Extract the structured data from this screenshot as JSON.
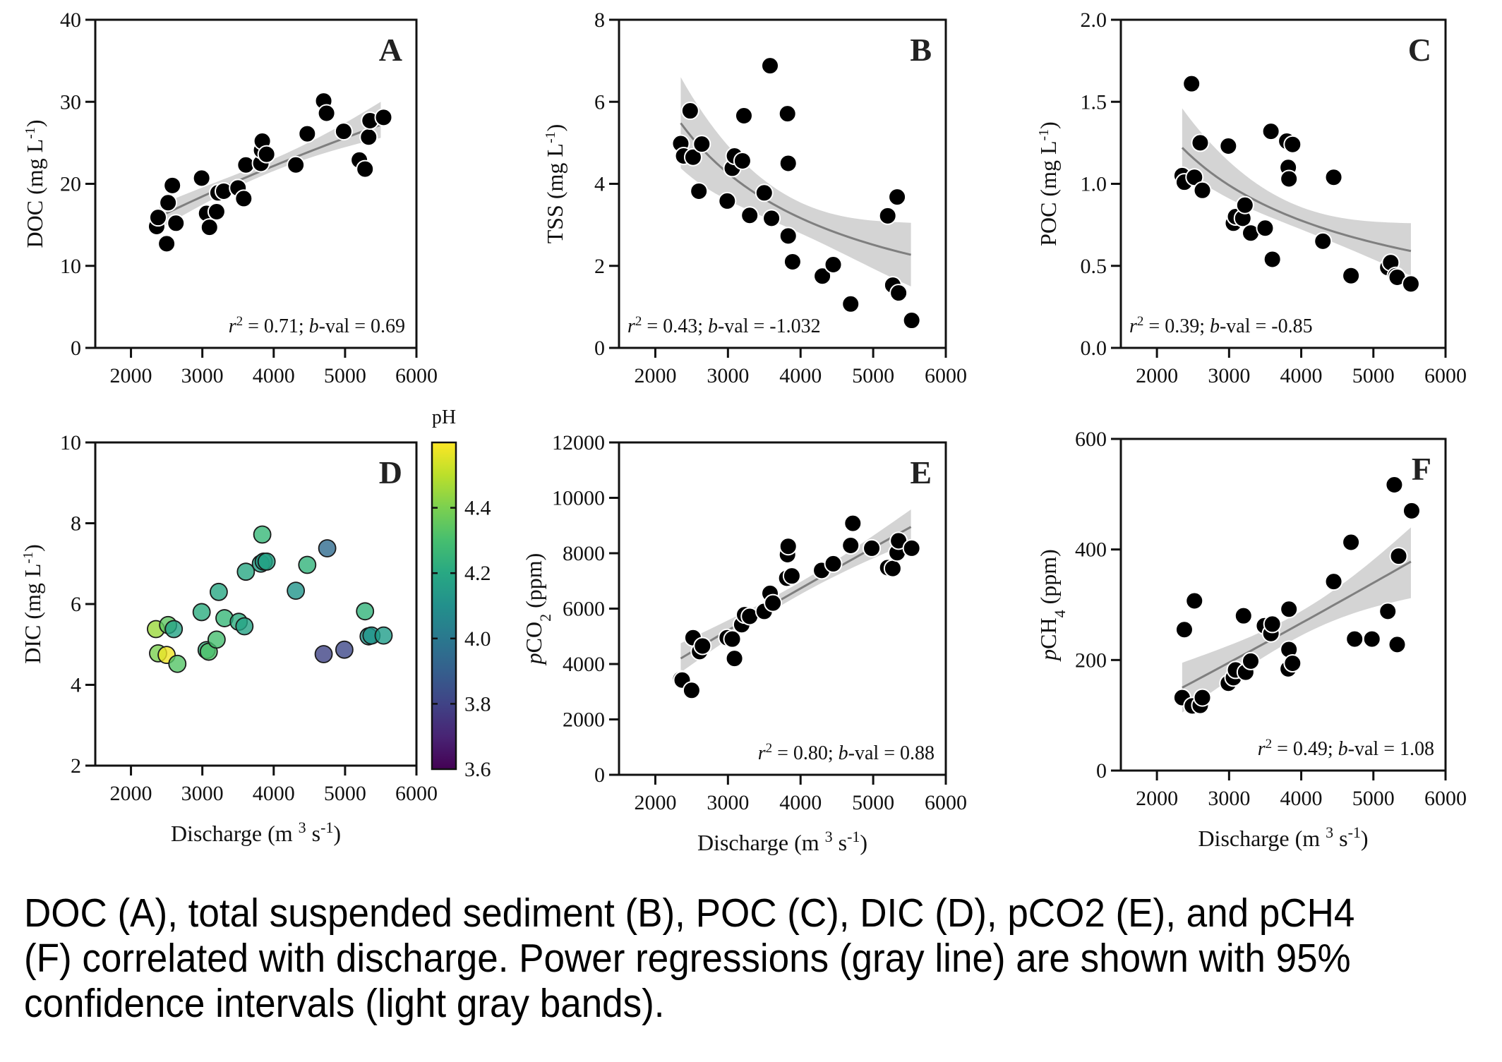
{
  "caption": "DOC (A), total suspended sediment (B), POC (C), DIC (D), pCO2 (E), and pCH4 (F) correlated with discharge. Power regressions (gray line) are shown with 95% confidence intervals (light gray bands).",
  "chart_data": [
    {
      "id": "A",
      "type": "scatter",
      "panel_label": "A",
      "ylabel": "DOC (mg L-1)",
      "ylabel_main": "DOC (mg L",
      "ylabel_sup": "-1",
      "ylabel_end": ")",
      "xlabel": "",
      "xlim": [
        1500,
        6000
      ],
      "ylim": [
        0,
        40
      ],
      "xticks": [
        2000,
        3000,
        4000,
        5000,
        6000
      ],
      "yticks": [
        0,
        10,
        20,
        30,
        40
      ],
      "ytick_labels": [
        "0",
        "10",
        "20",
        "30",
        "40"
      ],
      "stat": {
        "r2_label": "r",
        "r2_sup": "2",
        "r2_value": " = 0.71;  ",
        "b_label": "b",
        "b_value": "-val  = 0.69"
      },
      "stat_position": "bottom-right",
      "regression": {
        "type": "power",
        "x_range": [
          2400,
          5500
        ],
        "y_start": 16.0,
        "y_end": 27.2,
        "ci_start": [
          14.5,
          17.4
        ],
        "ci_end": [
          25.6,
          30.0
        ]
      },
      "points": [
        [
          2360,
          14.8
        ],
        [
          2380,
          15.9
        ],
        [
          2500,
          12.7
        ],
        [
          2520,
          17.7
        ],
        [
          2580,
          19.8
        ],
        [
          2630,
          15.2
        ],
        [
          2990,
          20.7
        ],
        [
          3060,
          16.4
        ],
        [
          3100,
          14.7
        ],
        [
          3200,
          16.6
        ],
        [
          3220,
          18.9
        ],
        [
          3300,
          19.1
        ],
        [
          3500,
          19.5
        ],
        [
          3580,
          18.2
        ],
        [
          3610,
          22.3
        ],
        [
          3820,
          22.5
        ],
        [
          3830,
          24.1
        ],
        [
          3840,
          25.2
        ],
        [
          3900,
          23.6
        ],
        [
          4310,
          22.3
        ],
        [
          4470,
          26.1
        ],
        [
          4700,
          30.1
        ],
        [
          4740,
          28.6
        ],
        [
          4980,
          26.4
        ],
        [
          5200,
          22.9
        ],
        [
          5280,
          21.8
        ],
        [
          5330,
          25.7
        ],
        [
          5350,
          27.7
        ],
        [
          5540,
          28.1
        ]
      ]
    },
    {
      "id": "B",
      "type": "scatter",
      "panel_label": "B",
      "ylabel": "TSS (mg L-1)",
      "ylabel_main": "TSS (mg L",
      "ylabel_sup": "-1",
      "ylabel_end": ")",
      "xlabel": "",
      "xlim": [
        1500,
        6000
      ],
      "ylim": [
        0,
        8
      ],
      "xticks": [
        2000,
        3000,
        4000,
        5000,
        6000
      ],
      "yticks": [
        0,
        2,
        4,
        6,
        8
      ],
      "ytick_labels": [
        "0",
        "2",
        "4",
        "6",
        "8"
      ],
      "stat": {
        "r2_label": "r",
        "r2_sup": "2",
        "r2_value": " = 0.43;  ",
        "b_label": "b",
        "b_value": "-val  = -1.032"
      },
      "stat_position": "bottom-left",
      "regression": {
        "type": "power",
        "x_range": [
          2350,
          5520
        ],
        "exponent": -1.032,
        "y_start": 5.48,
        "ci_start": [
          4.38,
          6.6
        ],
        "ci_end": [
          1.5,
          3.05
        ]
      },
      "points": [
        [
          2350,
          4.98
        ],
        [
          2390,
          4.68
        ],
        [
          2480,
          5.78
        ],
        [
          2520,
          4.65
        ],
        [
          2600,
          3.82
        ],
        [
          2640,
          4.97
        ],
        [
          2990,
          3.58
        ],
        [
          3060,
          4.38
        ],
        [
          3090,
          4.68
        ],
        [
          3200,
          4.56
        ],
        [
          3220,
          5.66
        ],
        [
          3300,
          3.23
        ],
        [
          3500,
          3.78
        ],
        [
          3580,
          6.88
        ],
        [
          3600,
          3.16
        ],
        [
          3820,
          5.71
        ],
        [
          3830,
          4.5
        ],
        [
          3830,
          2.73
        ],
        [
          3890,
          2.1
        ],
        [
          4300,
          1.75
        ],
        [
          4450,
          2.03
        ],
        [
          4690,
          1.07
        ],
        [
          5200,
          3.22
        ],
        [
          5270,
          1.53
        ],
        [
          5330,
          3.68
        ],
        [
          5350,
          1.34
        ],
        [
          5530,
          0.67
        ]
      ]
    },
    {
      "id": "C",
      "type": "scatter",
      "panel_label": "C",
      "ylabel": "POC (mg L-1)",
      "ylabel_main": "POC (mg L",
      "ylabel_sup": "-1",
      "ylabel_end": ")",
      "xlabel": "",
      "xlim": [
        1500,
        6000
      ],
      "ylim": [
        0,
        2.0
      ],
      "xticks": [
        2000,
        3000,
        4000,
        5000,
        6000
      ],
      "yticks": [
        0,
        0.5,
        1.0,
        1.5,
        2.0
      ],
      "ytick_labels": [
        "0.0",
        "0.5",
        "1.0",
        "1.5",
        "2.0"
      ],
      "stat": {
        "r2_label": "r",
        "r2_sup": "2",
        "r2_value": " = 0.39;  ",
        "b_label": "b",
        "b_value": "-val  = -0.85"
      },
      "stat_position": "bottom-left",
      "regression": {
        "type": "power",
        "x_range": [
          2350,
          5520
        ],
        "exponent": -0.85,
        "y_start": 1.22,
        "ci_start": [
          1.1,
          1.46
        ],
        "ci_end": [
          0.44,
          0.76
        ]
      },
      "points": [
        [
          2350,
          1.05
        ],
        [
          2380,
          1.01
        ],
        [
          2480,
          1.61
        ],
        [
          2520,
          1.04
        ],
        [
          2600,
          1.25
        ],
        [
          2630,
          0.96
        ],
        [
          2990,
          1.23
        ],
        [
          3060,
          0.76
        ],
        [
          3090,
          0.8
        ],
        [
          3190,
          0.79
        ],
        [
          3220,
          0.87
        ],
        [
          3300,
          0.7
        ],
        [
          3500,
          0.73
        ],
        [
          3580,
          1.32
        ],
        [
          3600,
          0.54
        ],
        [
          3800,
          1.26
        ],
        [
          3820,
          1.1
        ],
        [
          3830,
          1.03
        ],
        [
          3880,
          1.24
        ],
        [
          4300,
          0.65
        ],
        [
          4450,
          1.04
        ],
        [
          4690,
          0.44
        ],
        [
          5200,
          0.49
        ],
        [
          5240,
          0.52
        ],
        [
          5310,
          0.44
        ],
        [
          5330,
          0.43
        ],
        [
          5520,
          0.39
        ]
      ]
    },
    {
      "id": "D",
      "type": "scatter",
      "panel_label": "D",
      "ylabel": "DIC (mg L-1)",
      "ylabel_main": "DIC (mg L",
      "ylabel_sup": "-1",
      "ylabel_end": ")",
      "xlabel": "Discharge (m3 s-1)",
      "xlabel_main": "Discharge (m ",
      "xlabel_sup1": "3",
      "xlabel_mid": " s",
      "xlabel_sup2": "-1",
      "xlabel_end": ")",
      "xlim": [
        1500,
        6000
      ],
      "ylim": [
        2,
        10
      ],
      "xticks": [
        2000,
        3000,
        4000,
        5000,
        6000
      ],
      "yticks": [
        2,
        4,
        6,
        8,
        10
      ],
      "ytick_labels": [
        "2",
        "4",
        "6",
        "8",
        "10"
      ],
      "colorbar": {
        "title": "pH",
        "range": [
          3.6,
          4.6
        ],
        "ticks": [
          3.6,
          3.8,
          4.0,
          4.2,
          4.4
        ],
        "tick_labels": [
          "3.6",
          "3.8",
          "4.0",
          "4.2",
          "4.4"
        ],
        "colormap": "viridis"
      },
      "points": [
        [
          2350,
          5.38,
          4.45
        ],
        [
          2380,
          4.78,
          4.4
        ],
        [
          2500,
          4.74,
          4.58
        ],
        [
          2520,
          5.48,
          4.35
        ],
        [
          2600,
          5.38,
          4.18
        ],
        [
          2650,
          4.52,
          4.33
        ],
        [
          2990,
          5.8,
          4.22
        ],
        [
          3060,
          4.86,
          4.25
        ],
        [
          3090,
          4.82,
          4.32
        ],
        [
          3200,
          5.12,
          4.3
        ],
        [
          3230,
          6.3,
          4.2
        ],
        [
          3310,
          5.65,
          4.27
        ],
        [
          3510,
          5.56,
          4.22
        ],
        [
          3590,
          5.45,
          4.18
        ],
        [
          3610,
          6.8,
          4.2
        ],
        [
          3820,
          7.0,
          4.17
        ],
        [
          3840,
          7.72,
          4.27
        ],
        [
          3860,
          7.05,
          4.15
        ],
        [
          3900,
          7.05,
          4.18
        ],
        [
          4310,
          6.33,
          4.12
        ],
        [
          4470,
          6.97,
          4.25
        ],
        [
          4700,
          4.76,
          3.8
        ],
        [
          4750,
          7.38,
          3.95
        ],
        [
          4990,
          4.87,
          3.82
        ],
        [
          5280,
          5.82,
          4.25
        ],
        [
          5330,
          5.2,
          4.12
        ],
        [
          5370,
          5.22,
          4.12
        ],
        [
          5540,
          5.22,
          4.15
        ]
      ]
    },
    {
      "id": "E",
      "type": "scatter",
      "panel_label": "E",
      "ylabel": "pCO2 (ppm)",
      "ylabel_italic": "p",
      "ylabel_main": "CO",
      "ylabel_sub": "2",
      "ylabel_end": " (ppm)",
      "xlabel": "Discharge (m3 s-1)",
      "xlabel_main": "Discharge (m ",
      "xlabel_sup1": "3",
      "xlabel_mid": " s",
      "xlabel_sup2": "-1",
      "xlabel_end": ")",
      "xlim": [
        1500,
        6000
      ],
      "ylim": [
        0,
        12000
      ],
      "xticks": [
        2000,
        3000,
        4000,
        5000,
        6000
      ],
      "yticks": [
        0,
        2000,
        4000,
        6000,
        8000,
        10000,
        12000
      ],
      "ytick_labels": [
        "0",
        "2000",
        "4000",
        "6000",
        "8000",
        "10000",
        "12000"
      ],
      "stat": {
        "r2_label": "r",
        "r2_sup": "2",
        "r2_value": " = 0.80;  ",
        "b_label": "b",
        "b_value": "-val  = 0.88"
      },
      "stat_position": "bottom-right",
      "regression": {
        "type": "power",
        "x_range": [
          2350,
          5520
        ],
        "y_start": 4200,
        "y_end": 8950,
        "ci_start": [
          3700,
          4750
        ],
        "ci_end": [
          8400,
          9580
        ]
      },
      "points": [
        [
          2350,
          3450
        ],
        [
          2370,
          3420
        ],
        [
          2500,
          3050
        ],
        [
          2520,
          4950
        ],
        [
          2610,
          4450
        ],
        [
          2650,
          4650
        ],
        [
          2990,
          4950
        ],
        [
          3060,
          4900
        ],
        [
          3090,
          4200
        ],
        [
          3190,
          5420
        ],
        [
          3230,
          5780
        ],
        [
          3300,
          5720
        ],
        [
          3500,
          5900
        ],
        [
          3580,
          6550
        ],
        [
          3620,
          6200
        ],
        [
          3810,
          7100
        ],
        [
          3820,
          7950
        ],
        [
          3830,
          8250
        ],
        [
          3880,
          7180
        ],
        [
          4290,
          7380
        ],
        [
          4450,
          7620
        ],
        [
          4690,
          8280
        ],
        [
          4720,
          9080
        ],
        [
          4980,
          8180
        ],
        [
          5200,
          7480
        ],
        [
          5270,
          7450
        ],
        [
          5330,
          8020
        ],
        [
          5350,
          8450
        ],
        [
          5530,
          8180
        ]
      ]
    },
    {
      "id": "F",
      "type": "scatter",
      "panel_label": "F",
      "ylabel": "pCH4 (ppm)",
      "ylabel_italic": "p",
      "ylabel_main": "CH",
      "ylabel_sub": "4",
      "ylabel_end": " (ppm)",
      "xlabel": "Discharge (m3 s-1)",
      "xlabel_main": "Discharge (m ",
      "xlabel_sup1": "3",
      "xlabel_mid": " s",
      "xlabel_sup2": "-1",
      "xlabel_end": ")",
      "xlim": [
        1500,
        6000
      ],
      "ylim": [
        0,
        600
      ],
      "xticks": [
        2000,
        3000,
        4000,
        5000,
        6000
      ],
      "yticks": [
        0,
        200,
        400,
        600
      ],
      "ytick_labels": [
        "0",
        "200",
        "400",
        "600"
      ],
      "stat": {
        "r2_label": "r",
        "r2_sup": "2",
        "r2_value": " = 0.49;  ",
        "b_label": "b",
        "b_value": "-val  = 1.08"
      },
      "stat_position": "bottom-right",
      "regression": {
        "type": "power",
        "x_range": [
          2350,
          5520
        ],
        "y_start": 150,
        "y_end": 378,
        "ci_start": [
          105,
          195
        ],
        "ci_end": [
          312,
          440
        ]
      },
      "points": [
        [
          2350,
          132
        ],
        [
          2380,
          255
        ],
        [
          2490,
          117
        ],
        [
          2520,
          307
        ],
        [
          2600,
          118
        ],
        [
          2630,
          132
        ],
        [
          2990,
          158
        ],
        [
          3060,
          168
        ],
        [
          3090,
          182
        ],
        [
          3200,
          280
        ],
        [
          3230,
          178
        ],
        [
          3300,
          198
        ],
        [
          3490,
          262
        ],
        [
          3580,
          248
        ],
        [
          3600,
          265
        ],
        [
          3820,
          184
        ],
        [
          3830,
          292
        ],
        [
          3830,
          219
        ],
        [
          3880,
          194
        ],
        [
          4450,
          342
        ],
        [
          4690,
          413
        ],
        [
          4740,
          238
        ],
        [
          4980,
          238
        ],
        [
          5200,
          288
        ],
        [
          5290,
          517
        ],
        [
          5330,
          228
        ],
        [
          5350,
          388
        ],
        [
          5530,
          470
        ]
      ]
    }
  ]
}
